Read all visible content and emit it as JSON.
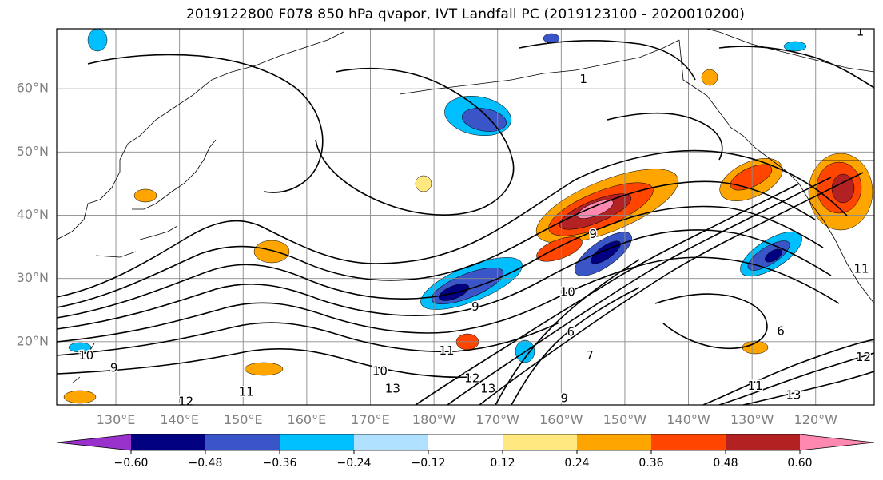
{
  "chart_data": {
    "type": "heatmap",
    "title": "2019122800 F078 850 hPa qvapor, IVT Landfall PC (2019123100 - 2020010200)",
    "map": {
      "projection": "equirectangular",
      "lon_range_east": [
        120.7,
        249.2
      ],
      "lat_range": [
        10.0,
        69.5
      ],
      "grid": true
    },
    "lon_ticks": [
      {
        "lon_east": 130,
        "label": "130°E"
      },
      {
        "lon_east": 140,
        "label": "140°E"
      },
      {
        "lon_east": 150,
        "label": "150°E"
      },
      {
        "lon_east": 160,
        "label": "160°E"
      },
      {
        "lon_east": 170,
        "label": "170°E"
      },
      {
        "lon_east": 180,
        "label": "180°W"
      },
      {
        "lon_east": 190,
        "label": "170°W"
      },
      {
        "lon_east": 200,
        "label": "160°W"
      },
      {
        "lon_east": 210,
        "label": "150°W"
      },
      {
        "lon_east": 220,
        "label": "140°W"
      },
      {
        "lon_east": 230,
        "label": "130°W"
      },
      {
        "lon_east": 240,
        "label": "120°W"
      }
    ],
    "lat_ticks": [
      {
        "lat": 20,
        "label": "20°N"
      },
      {
        "lat": 30,
        "label": "30°N"
      },
      {
        "lat": 40,
        "label": "40°N"
      },
      {
        "lat": 50,
        "label": "50°N"
      },
      {
        "lat": 60,
        "label": "60°N"
      }
    ],
    "colorbar": {
      "orientation": "horizontal",
      "extend": "both",
      "levels": [
        -0.72,
        -0.6,
        -0.48,
        -0.36,
        -0.24,
        -0.12,
        0.12,
        0.24,
        0.36,
        0.48,
        0.6,
        0.72
      ],
      "tick_values": [
        -0.6,
        -0.48,
        -0.36,
        -0.24,
        -0.12,
        0.12,
        0.24,
        0.36,
        0.48,
        0.6
      ],
      "tick_labels": [
        "−0.60",
        "−0.48",
        "−0.36",
        "−0.24",
        "−0.12",
        "0.12",
        "0.24",
        "0.36",
        "0.48",
        "0.60"
      ],
      "colors": [
        "#9932cc",
        "#000080",
        "#3a55c8",
        "#00bfff",
        "#b0e0ff",
        "#ffffff",
        "#ffe87f",
        "#ffa500",
        "#ff4500",
        "#b22222",
        "#ff88b0"
      ]
    },
    "contour_labels": [
      {
        "text": "10",
        "lon_east": 125.3,
        "lat": 17.8
      },
      {
        "text": "9",
        "lon_east": 129.7,
        "lat": 15.8
      },
      {
        "text": "12",
        "lon_east": 141.0,
        "lat": 10.5
      },
      {
        "text": "11",
        "lon_east": 150.5,
        "lat": 12.0
      },
      {
        "text": "10",
        "lon_east": 171.5,
        "lat": 15.3
      },
      {
        "text": "13",
        "lon_east": 173.5,
        "lat": 12.5
      },
      {
        "text": "12",
        "lon_east": 186.0,
        "lat": 14.2
      },
      {
        "text": "13",
        "lon_east": 188.5,
        "lat": 12.5
      },
      {
        "text": "11",
        "lon_east": 182.0,
        "lat": 18.5
      },
      {
        "text": "9",
        "lon_east": 186.5,
        "lat": 25.5
      },
      {
        "text": "10",
        "lon_east": 201.0,
        "lat": 27.8
      },
      {
        "text": "9",
        "lon_east": 205.0,
        "lat": 37.0
      },
      {
        "text": "9",
        "lon_east": 200.5,
        "lat": 11.0
      },
      {
        "text": "7",
        "lon_east": 204.5,
        "lat": 17.8
      },
      {
        "text": "6",
        "lon_east": 201.5,
        "lat": 21.5
      },
      {
        "text": "1",
        "lon_east": 203.5,
        "lat": 61.5
      },
      {
        "text": "1",
        "lon_east": 247.0,
        "lat": 69.0
      },
      {
        "text": "6",
        "lon_east": 234.5,
        "lat": 21.6
      },
      {
        "text": "11",
        "lon_east": 230.5,
        "lat": 13.0
      },
      {
        "text": "13",
        "lon_east": 236.5,
        "lat": 11.5
      },
      {
        "text": "12",
        "lon_east": 247.5,
        "lat": 17.5
      },
      {
        "text": "11",
        "lon_east": 247.2,
        "lat": 31.5
      }
    ]
  }
}
